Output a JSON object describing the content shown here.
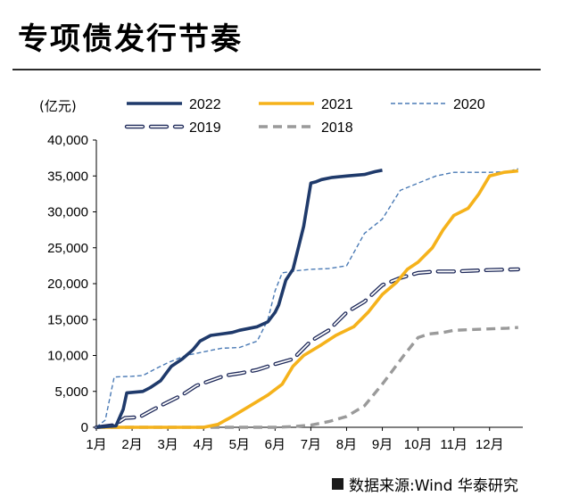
{
  "title": "专项债发行节奏",
  "unit_label": "(亿元)",
  "source": "数据来源:Wind 华泰研究",
  "chart_data": {
    "type": "line",
    "title": "专项债发行节奏",
    "ylabel": "(亿元)",
    "xlabel": "",
    "ylim": [
      0,
      40000
    ],
    "yticks": [
      "0",
      "5,000",
      "10,000",
      "15,000",
      "20,000",
      "25,000",
      "30,000",
      "35,000",
      "40,000"
    ],
    "xticks": [
      "1月",
      "2月",
      "3月",
      "4月",
      "5月",
      "6月",
      "7月",
      "8月",
      "9月",
      "10月",
      "11月",
      "12月"
    ],
    "grid": false,
    "legend_position": "top",
    "series": [
      {
        "name": "2022",
        "color": "#1f3a6b",
        "style": "solid-thick",
        "x": [
          1.0,
          1.55,
          1.75,
          1.85,
          2.3,
          2.5,
          2.8,
          3.1,
          3.4,
          3.7,
          3.9,
          4.2,
          4.5,
          4.8,
          5.0,
          5.5,
          5.8,
          6.0,
          6.1,
          6.3,
          6.5,
          6.8,
          7.0,
          7.15,
          7.3,
          7.6,
          8.0,
          8.5,
          8.8,
          9.0
        ],
        "y": [
          0,
          200,
          2500,
          4800,
          5000,
          5500,
          6500,
          8500,
          9500,
          10800,
          12000,
          12800,
          13000,
          13200,
          13500,
          14000,
          14700,
          16000,
          17000,
          20500,
          22000,
          28000,
          34000,
          34200,
          34500,
          34800,
          35000,
          35200,
          35600,
          35800
        ]
      },
      {
        "name": "2021",
        "color": "#f5b21b",
        "style": "solid-thick",
        "x": [
          1.0,
          4.0,
          4.4,
          4.8,
          5.3,
          5.8,
          6.2,
          6.5,
          6.8,
          7.3,
          7.7,
          8.2,
          8.6,
          9.0,
          9.4,
          9.7,
          10.0,
          10.4,
          10.7,
          11.0,
          11.4,
          11.7,
          12.0,
          12.4,
          12.8
        ],
        "y": [
          0,
          0,
          400,
          1500,
          3000,
          4500,
          6000,
          8500,
          10000,
          11500,
          12800,
          14000,
          16000,
          18500,
          20200,
          22000,
          23000,
          25000,
          27500,
          29500,
          30500,
          32500,
          35000,
          35500,
          35700
        ]
      },
      {
        "name": "2020",
        "color": "#4a7ab5",
        "style": "dashed-thin",
        "x": [
          1.0,
          1.25,
          1.5,
          2.0,
          2.3,
          2.6,
          3.0,
          3.5,
          4.0,
          4.5,
          5.0,
          5.5,
          5.8,
          6.0,
          6.2,
          6.6,
          7.0,
          7.5,
          8.0,
          8.5,
          9.0,
          9.5,
          10.0,
          10.5,
          11.0,
          11.5,
          12.0,
          12.5,
          12.8
        ],
        "y": [
          0,
          1000,
          7000,
          7100,
          7200,
          8000,
          9000,
          10000,
          10500,
          11000,
          11100,
          12000,
          15000,
          19000,
          21500,
          21800,
          22000,
          22100,
          22500,
          27000,
          29000,
          33000,
          34000,
          35000,
          35500,
          35500,
          35500,
          35600,
          36000
        ]
      },
      {
        "name": "2019",
        "color": "#1f2a5a",
        "style": "double-dashed",
        "x": [
          1.0,
          1.5,
          1.8,
          2.2,
          2.6,
          3.0,
          3.4,
          3.8,
          4.2,
          4.6,
          5.0,
          5.5,
          6.0,
          6.5,
          7.0,
          7.5,
          8.0,
          8.5,
          9.0,
          9.5,
          10.0,
          10.5,
          11.0,
          11.5,
          12.0,
          12.8
        ],
        "y": [
          0,
          300,
          1300,
          1400,
          2500,
          3500,
          4500,
          5800,
          6500,
          7200,
          7500,
          8000,
          8800,
          9500,
          12000,
          13500,
          16000,
          17500,
          19800,
          20800,
          21500,
          21700,
          21700,
          21800,
          21900,
          22000
        ]
      },
      {
        "name": "2018",
        "color": "#9a9a9a",
        "style": "dashed-thick",
        "x": [
          1.0,
          2.0,
          3.0,
          4.0,
          5.0,
          6.0,
          6.5,
          7.0,
          7.5,
          8.0,
          8.5,
          9.0,
          9.3,
          9.6,
          10.0,
          10.3,
          10.7,
          11.0,
          11.5,
          12.0,
          12.5,
          12.8
        ],
        "y": [
          0,
          0,
          0,
          0,
          0,
          0,
          100,
          300,
          800,
          1500,
          3000,
          6000,
          8000,
          10000,
          12500,
          13000,
          13200,
          13500,
          13600,
          13700,
          13800,
          13900
        ]
      }
    ]
  }
}
